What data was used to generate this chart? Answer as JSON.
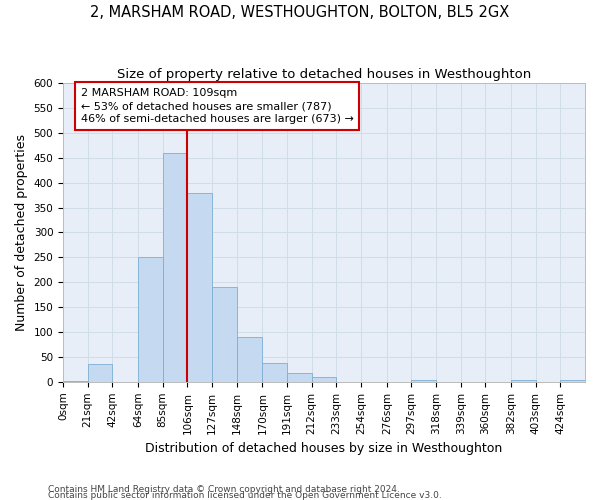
{
  "title": "2, MARSHAM ROAD, WESTHOUGHTON, BOLTON, BL5 2GX",
  "subtitle": "Size of property relative to detached houses in Westhoughton",
  "xlabel": "Distribution of detached houses by size in Westhoughton",
  "ylabel": "Number of detached properties",
  "footnote1": "Contains HM Land Registry data © Crown copyright and database right 2024.",
  "footnote2": "Contains public sector information licensed under the Open Government Licence v3.0.",
  "bin_labels": [
    "0sqm",
    "21sqm",
    "42sqm",
    "64sqm",
    "85sqm",
    "106sqm",
    "127sqm",
    "148sqm",
    "170sqm",
    "191sqm",
    "212sqm",
    "233sqm",
    "254sqm",
    "276sqm",
    "297sqm",
    "318sqm",
    "339sqm",
    "360sqm",
    "382sqm",
    "403sqm",
    "424sqm"
  ],
  "bar_heights": [
    2,
    35,
    0,
    250,
    460,
    380,
    190,
    90,
    38,
    18,
    10,
    0,
    0,
    0,
    3,
    0,
    0,
    0,
    3,
    0,
    3
  ],
  "bar_color": "#c5d9f0",
  "bar_edge_color": "#7bafd4",
  "property_line_x": 106,
  "annotation_text": "2 MARSHAM ROAD: 109sqm\n← 53% of detached houses are smaller (787)\n46% of semi-detached houses are larger (673) →",
  "annotation_box_color": "#ffffff",
  "annotation_box_edge": "#cc0000",
  "line_color": "#cc0000",
  "ylim": [
    0,
    600
  ],
  "yticks": [
    0,
    50,
    100,
    150,
    200,
    250,
    300,
    350,
    400,
    450,
    500,
    550,
    600
  ],
  "grid_color": "#d0dce8",
  "bg_color": "#e8eef8",
  "title_fontsize": 10.5,
  "subtitle_fontsize": 9.5,
  "axis_label_fontsize": 9,
  "tick_fontsize": 7.5,
  "footnote_fontsize": 6.5
}
